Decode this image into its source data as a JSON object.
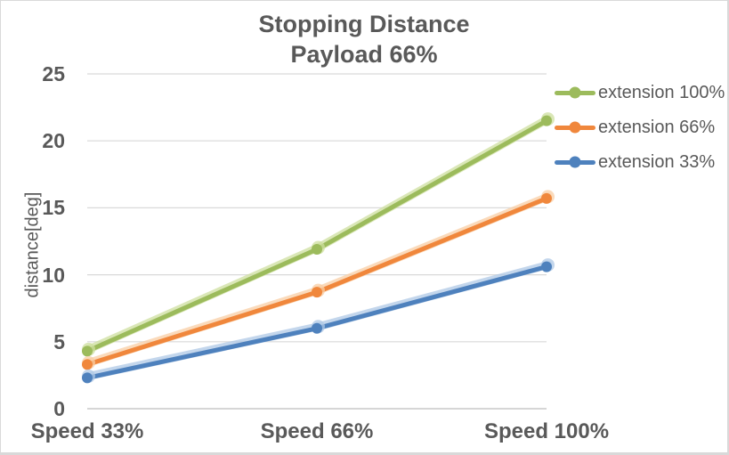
{
  "window": {
    "background": "#FFFFFF",
    "border_color": "#D9D9D9"
  },
  "chart_data": {
    "type": "line",
    "title": "Stopping Distance",
    "subtitle": "Payload 66%",
    "xlabel": "",
    "ylabel": "distance[deg]",
    "categories": [
      "Speed 33%",
      "Speed 66%",
      "Speed 100%"
    ],
    "series": [
      {
        "name": "extension 100%",
        "values": [
          4.3,
          11.9,
          21.5
        ],
        "color": "#9CBB5C",
        "halo_color": "#CDDF9F"
      },
      {
        "name": "extension 66%",
        "values": [
          3.3,
          8.7,
          15.7
        ],
        "color": "#F0873C",
        "halo_color": "#F8CDA4"
      },
      {
        "name": "extension 33%",
        "values": [
          2.3,
          6.0,
          10.6
        ],
        "color": "#4E81BD",
        "halo_color": "#AFC8E5"
      }
    ],
    "ylim": [
      0,
      25
    ],
    "yticks": [
      0,
      5,
      10,
      15,
      20,
      25
    ],
    "grid": true,
    "legend_position": "right",
    "text_color": "#595959",
    "grid_color": "#D9D9D9",
    "axis_color": "#C9C9C9"
  }
}
